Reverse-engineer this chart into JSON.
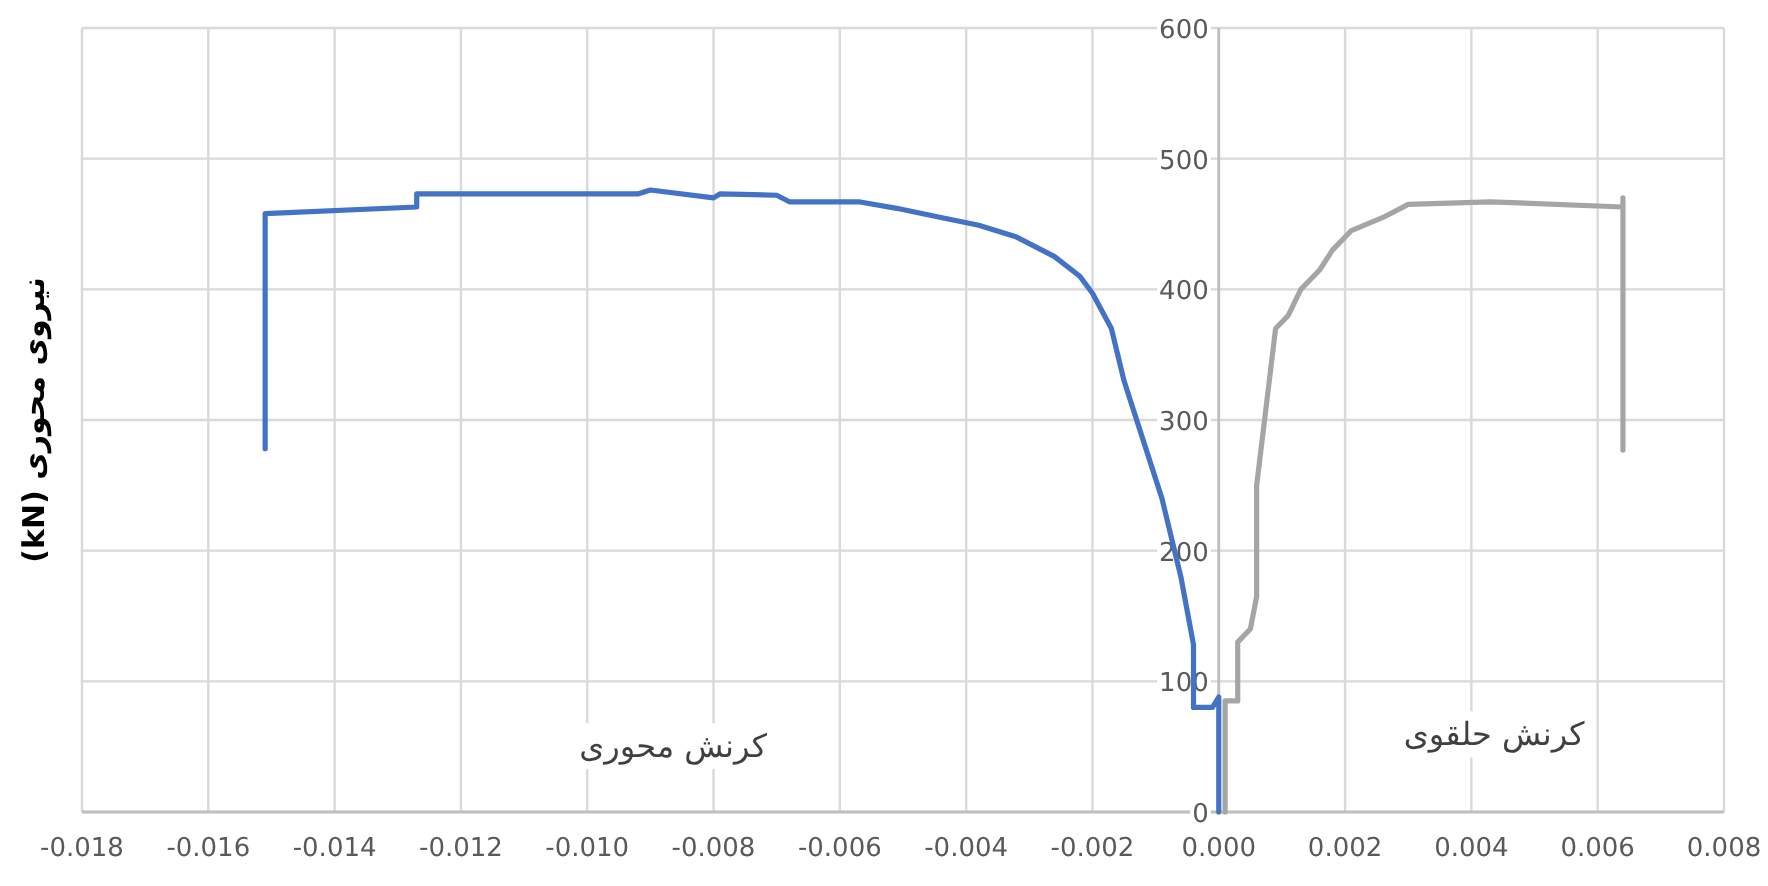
{
  "chart_data": {
    "type": "line",
    "ylabel": "نیروی محوری (kN)",
    "xlim": [
      -0.018,
      0.008
    ],
    "ylim": [
      0,
      600
    ],
    "xticks": [
      -0.018,
      -0.016,
      -0.014,
      -0.012,
      {
        "value": -0.01,
        "label": "-0.010"
      },
      -0.008,
      -0.006,
      -0.004,
      -0.002,
      {
        "value": 0,
        "label": "0.000"
      },
      0.002,
      0.004,
      0.006,
      0.008
    ],
    "yticks": [
      0,
      100,
      200,
      300,
      400,
      500,
      600
    ],
    "grid": true,
    "annotations": [
      "کرنش محوری",
      "کرنش حلقوی"
    ],
    "series": [
      {
        "color": "#4472c4",
        "x": [
          -0.0151,
          -0.0151,
          -0.0127,
          -0.0127,
          -0.0092,
          -0.009,
          -0.008,
          -0.0079,
          -0.007,
          -0.0068,
          -0.0057,
          -0.0051,
          -0.0044,
          -0.0038,
          -0.0032,
          -0.0026,
          -0.0022,
          -0.002,
          -0.0017,
          -0.0015,
          -0.0012,
          -0.0009,
          -0.0006,
          -0.0004,
          -0.0004,
          -0.0001,
          0,
          0
        ],
        "values": [
          278,
          458,
          463,
          473,
          473,
          476,
          470,
          473,
          472,
          467,
          467,
          462,
          455,
          449,
          440,
          425,
          410,
          397,
          370,
          330,
          285,
          240,
          180,
          128,
          80,
          80,
          88,
          0
        ]
      },
      {
        "color": "#a5a5a5",
        "x": [
          0.0001,
          0.0001,
          0.0003,
          0.0003,
          0.0005,
          0.0006,
          0.0006,
          0.0007,
          0.0008,
          0.0009,
          0.0011,
          0.0013,
          0.0016,
          0.0018,
          0.0021,
          0.0026,
          0.003,
          0.0043,
          0.0064,
          0.0064,
          0.0064
        ],
        "values": [
          0,
          85,
          85,
          130,
          140,
          165,
          250,
          290,
          330,
          370,
          380,
          400,
          415,
          430,
          445,
          455,
          465,
          467,
          463,
          470,
          277
        ]
      }
    ]
  }
}
